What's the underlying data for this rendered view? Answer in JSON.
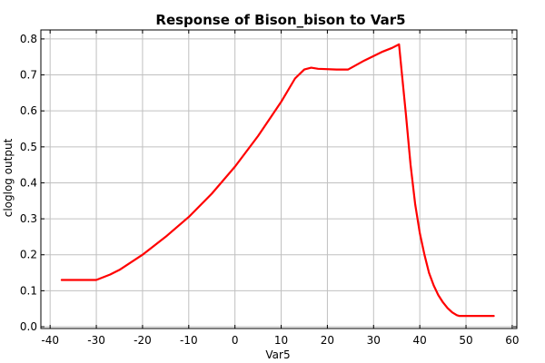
{
  "chart_data": {
    "type": "line",
    "title": "Response of Bison_bison to Var5",
    "xlabel": "Var5",
    "ylabel": "cloglog output",
    "xlim": [
      -42,
      61
    ],
    "ylim": [
      -0.005,
      0.825
    ],
    "xticks": [
      -40,
      -30,
      -20,
      -10,
      0,
      10,
      20,
      30,
      40,
      50,
      60
    ],
    "yticks": [
      0.0,
      0.1,
      0.2,
      0.3,
      0.4,
      0.5,
      0.6,
      0.7,
      0.8
    ],
    "xtick_labels": [
      "-40",
      "-30",
      "-20",
      "-10",
      "0",
      "10",
      "20",
      "30",
      "40",
      "50",
      "60"
    ],
    "ytick_labels": [
      "0.0",
      "0.1",
      "0.2",
      "0.3",
      "0.4",
      "0.5",
      "0.6",
      "0.7",
      "0.8"
    ],
    "grid": true,
    "series": [
      {
        "color": "#ff0000",
        "x": [
          -37.5,
          -30,
          -27,
          -25,
          -20,
          -15,
          -10,
          -5,
          0,
          5,
          10,
          13,
          15,
          16.5,
          18,
          22,
          24.5,
          28,
          32,
          34,
          35.5,
          36,
          37,
          38,
          39,
          40,
          41,
          42,
          43,
          44,
          45,
          46,
          47,
          48,
          48.5,
          50,
          53,
          56
        ],
        "y": [
          0.13,
          0.13,
          0.145,
          0.158,
          0.2,
          0.25,
          0.305,
          0.37,
          0.445,
          0.53,
          0.625,
          0.69,
          0.715,
          0.72,
          0.717,
          0.715,
          0.715,
          0.74,
          0.765,
          0.775,
          0.785,
          0.72,
          0.59,
          0.45,
          0.34,
          0.26,
          0.2,
          0.15,
          0.115,
          0.088,
          0.068,
          0.052,
          0.04,
          0.032,
          0.03,
          0.03,
          0.03,
          0.03
        ]
      }
    ]
  }
}
